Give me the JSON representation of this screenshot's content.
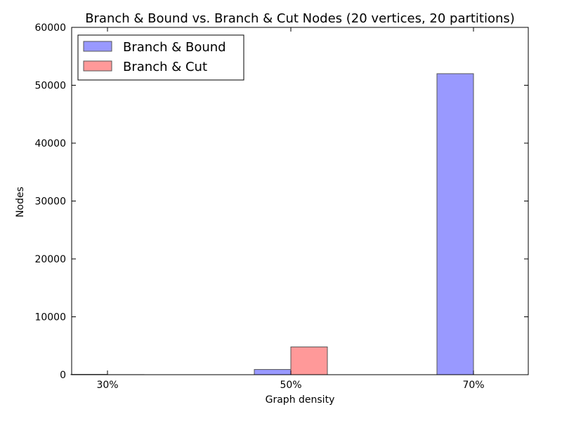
{
  "chart_data": {
    "type": "bar",
    "title": "Branch & Bound vs. Branch & Cut Nodes (20 vertices, 20 partitions)",
    "xlabel": "Graph density",
    "ylabel": "Nodes",
    "categories": [
      "30%",
      "50%",
      "70%"
    ],
    "series": [
      {
        "name": "Branch & Bound",
        "color": "#9999ff",
        "values": [
          60,
          900,
          52000
        ]
      },
      {
        "name": "Branch & Cut",
        "color": "#ff9999",
        "values": [
          10,
          4800,
          0
        ]
      }
    ],
    "ylim": [
      0,
      60000
    ],
    "yticks": [
      0,
      10000,
      20000,
      30000,
      40000,
      50000,
      60000
    ],
    "grid": false,
    "legend_position": "top-left"
  }
}
